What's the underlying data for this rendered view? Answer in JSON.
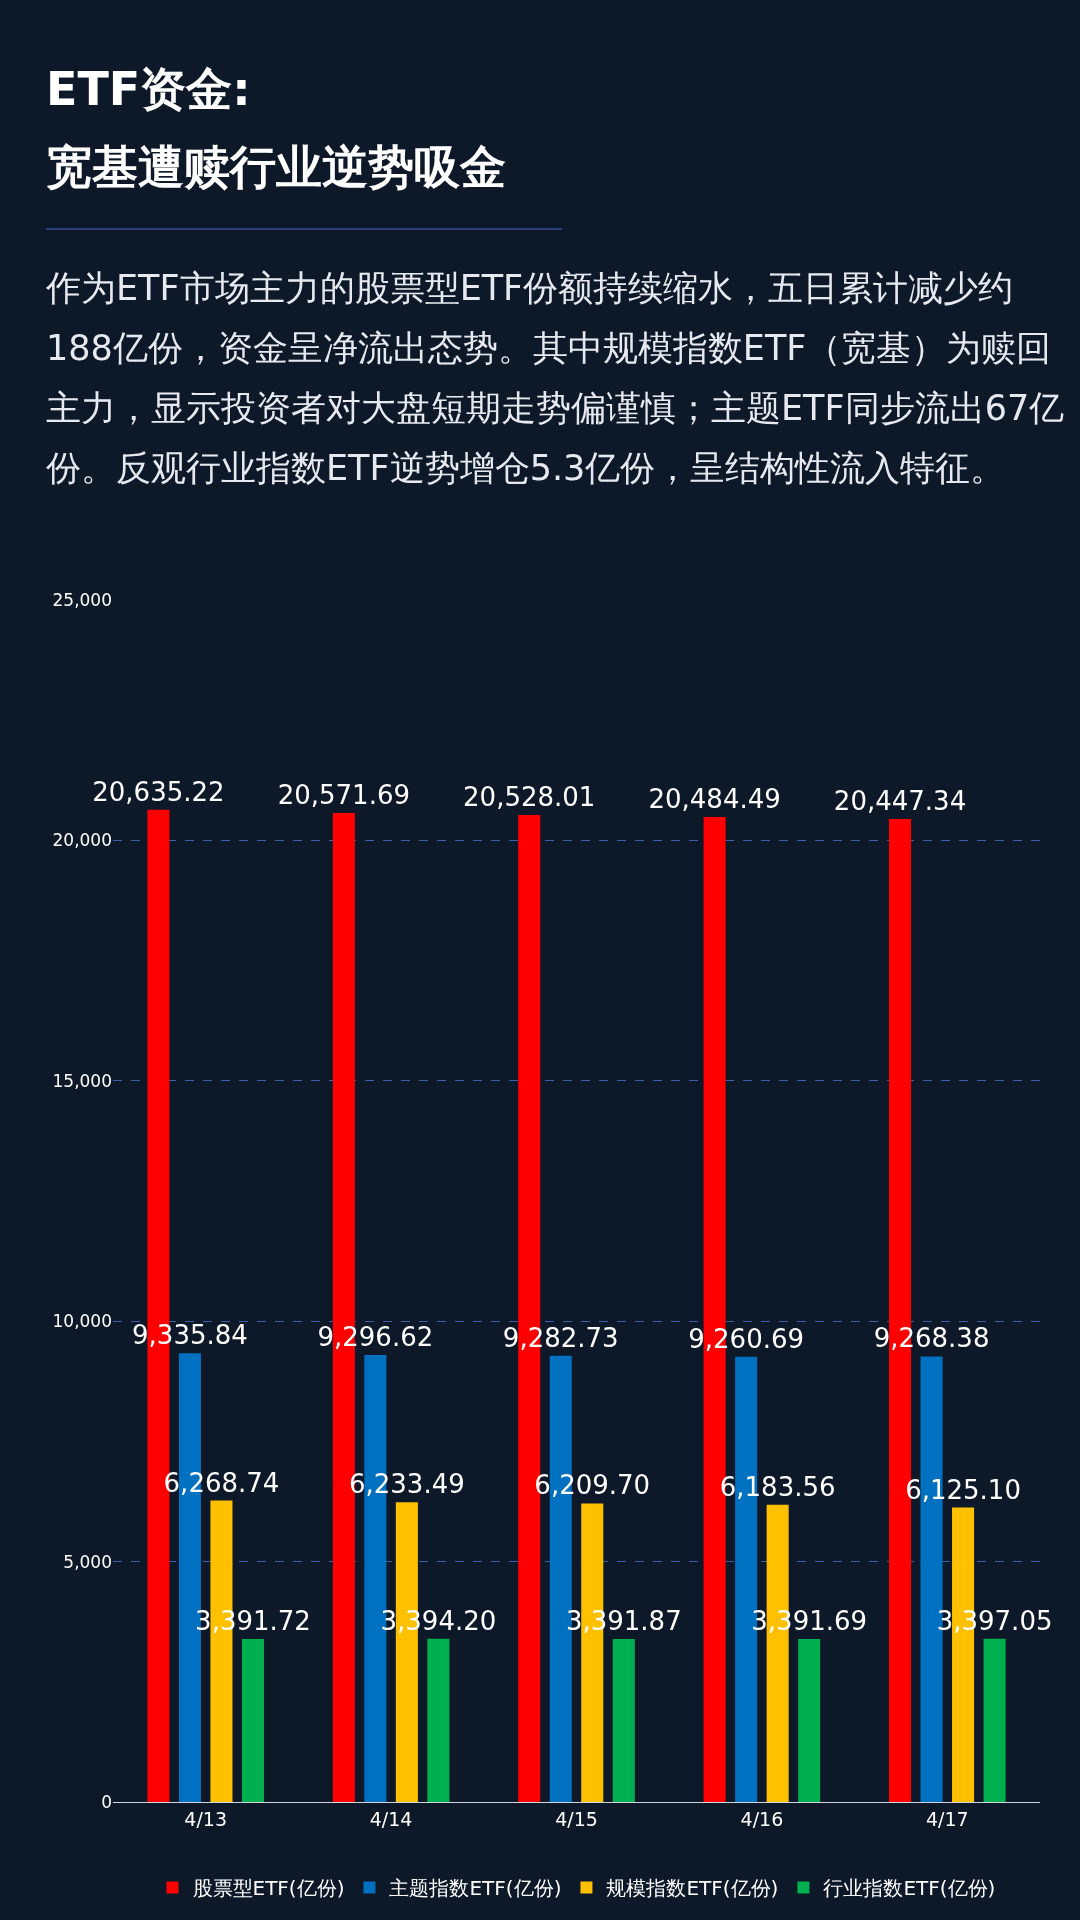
{
  "chart_data": {
    "type": "bar",
    "title": "ETF资金:\n宽基遭赎行业逆势吸金",
    "subtitle": "作为ETF市场主力的股票型ETF份额持续缩水，五日累计减少约188亿份，资金呈净流出态势。其中规模指数ETF（宽基）为赎回主力，显示投资者对大盘短期走势偏谨慎；主题ETF同步流出67亿份。反观行业指数ETF逆势增仓5.3亿份，呈结构性流入特征。",
    "categories": [
      "4/13",
      "4/14",
      "4/15",
      "4/16",
      "4/17"
    ],
    "series": [
      {
        "name": "股票型ETF(亿份)",
        "color": "#ff0000",
        "values": [
          20635.22,
          20571.69,
          20528.01,
          20484.49,
          20447.34
        ],
        "value_labels": [
          "20,635.22",
          "20,571.69",
          "20,528.01",
          "20,484.49",
          "20,447.34"
        ]
      },
      {
        "name": "主题指数ETF(亿份)",
        "color": "#0070c0",
        "values": [
          9335.84,
          9296.62,
          9282.73,
          9260.69,
          9268.38
        ],
        "value_labels": [
          "9,335.84",
          "9,296.62",
          "9,282.73",
          "9,260.69",
          "9,268.38"
        ]
      },
      {
        "name": "规模指数ETF(亿份)",
        "color": "#ffc000",
        "values": [
          6268.74,
          6233.49,
          6209.7,
          6183.56,
          6125.1
        ],
        "value_labels": [
          "6,268.74",
          "6,233.49",
          "6,209.70",
          "6,183.56",
          "6,125.10"
        ]
      },
      {
        "name": "行业指数ETF(亿份)",
        "color": "#00b050",
        "values": [
          3391.72,
          3394.2,
          3391.87,
          3391.69,
          3397.05
        ],
        "value_labels": [
          "3,391.72",
          "3,394.20",
          "3,391.87",
          "3,391.69",
          "3,397.05"
        ]
      }
    ],
    "ylim": [
      0,
      25000
    ],
    "yticks": [
      0,
      {
        "value": 5000,
        "label": "5,000"
      },
      {
        "value": 10000,
        "label": "10,000"
      },
      {
        "value": 15000,
        "label": "15,000"
      },
      {
        "value": 20000,
        "label": "20,000"
      },
      {
        "value": 25000,
        "label": "25,000"
      }
    ],
    "grid": "y",
    "legend": "bottom"
  }
}
